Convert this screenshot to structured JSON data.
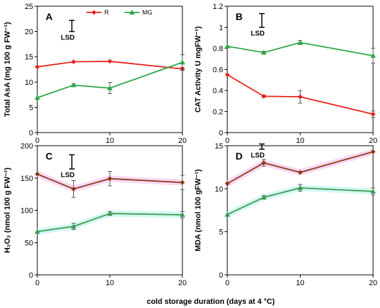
{
  "x_axis_label": "cold storage duration (days at 4 °C)",
  "colors": {
    "R": "#e8201c",
    "MG": "#2ea84a",
    "C_series_1": "#8b3a17",
    "D_series_1": "#8b3a17",
    "C_series_2": "#3f9a50",
    "D_series_2": "#3f9a50",
    "error_bar": "#555555",
    "halo_pink": "#f4b8ea",
    "halo_cyan": "#aef0ea"
  },
  "chart_data": [
    {
      "type": "line",
      "panel": "A",
      "lsd_label": "LSD",
      "ylabel": "Total AsA (mg 100 g FW⁻¹)",
      "ylim": [
        0,
        25
      ],
      "yticks": [
        "0",
        "5",
        "10",
        "15",
        "20",
        "25"
      ],
      "xlim": [
        0,
        20
      ],
      "xticks": [
        "0",
        "10",
        "20"
      ],
      "x": [
        0,
        5,
        10,
        20
      ],
      "legend": {
        "placement": "top-right"
      },
      "lsd_range": [
        20,
        22.2
      ],
      "series": [
        {
          "name": "R",
          "marker": "diamond",
          "values": [
            13.0,
            14.0,
            14.1,
            12.6
          ],
          "errors": [
            0,
            0,
            0,
            0.3
          ]
        },
        {
          "name": "MG",
          "marker": "triangle",
          "values": [
            6.9,
            9.4,
            8.8,
            13.9
          ],
          "errors": [
            0,
            0.3,
            1.1,
            1.5
          ]
        }
      ]
    },
    {
      "type": "line",
      "panel": "B",
      "lsd_label": "LSD",
      "ylabel": "CAT Activity U mgFW⁻¹)",
      "ylim": [
        0,
        1.2
      ],
      "yticks": [
        "0",
        "0.2",
        "0.4",
        "0.6",
        "0.8",
        "1",
        "1.2"
      ],
      "xlim": [
        0,
        20
      ],
      "xticks": [
        "0",
        "10",
        "20"
      ],
      "x": [
        0,
        5,
        10,
        20
      ],
      "lsd_range": [
        1.0,
        1.13
      ],
      "series": [
        {
          "marker": "diamond",
          "values": [
            0.55,
            0.345,
            0.34,
            0.175
          ],
          "errors": [
            0,
            0.01,
            0.06,
            0.03
          ]
        },
        {
          "marker": "triangle",
          "values": [
            0.82,
            0.76,
            0.855,
            0.73
          ],
          "errors": [
            0,
            0.01,
            0.02,
            0.07
          ]
        }
      ]
    },
    {
      "type": "line",
      "panel": "C",
      "lsd_label": "LSD",
      "ylabel": "H₂O₂ (nmol 100 g FW⁻¹)",
      "ylim": [
        0,
        200
      ],
      "yticks": [
        "0",
        "50",
        "100",
        "150",
        "200"
      ],
      "xlim": [
        0,
        20
      ],
      "xticks": [
        "0",
        "10",
        "20"
      ],
      "x": [
        0,
        5,
        10,
        20
      ],
      "lsd_range": [
        164,
        186
      ],
      "series": [
        {
          "marker": "diamond",
          "values": [
            156,
            133,
            149,
            143
          ],
          "errors": [
            0,
            13,
            11,
            11
          ]
        },
        {
          "marker": "triangle",
          "values": [
            67,
            75,
            95,
            93
          ],
          "errors": [
            0,
            5,
            3,
            5
          ]
        }
      ]
    },
    {
      "type": "line",
      "panel": "D",
      "lsd_label": "LSD",
      "ylabel": "MDA (nmol 100 gFW⁻¹)",
      "ylim": [
        0,
        15
      ],
      "yticks": [
        "0",
        "5",
        "10",
        "15"
      ],
      "xlim": [
        0,
        20
      ],
      "xticks": [
        "0",
        "10",
        "20"
      ],
      "x": [
        0,
        5,
        10,
        20
      ],
      "lsd_range": [
        14.6,
        15.2
      ],
      "series": [
        {
          "marker": "diamond",
          "values": [
            10.6,
            13.0,
            11.9,
            14.3
          ],
          "errors": [
            0,
            0.4,
            0,
            0
          ]
        },
        {
          "marker": "triangle",
          "values": [
            7.0,
            9.0,
            10.1,
            9.7
          ],
          "errors": [
            0,
            0.2,
            0.4,
            0.4
          ]
        }
      ]
    }
  ]
}
